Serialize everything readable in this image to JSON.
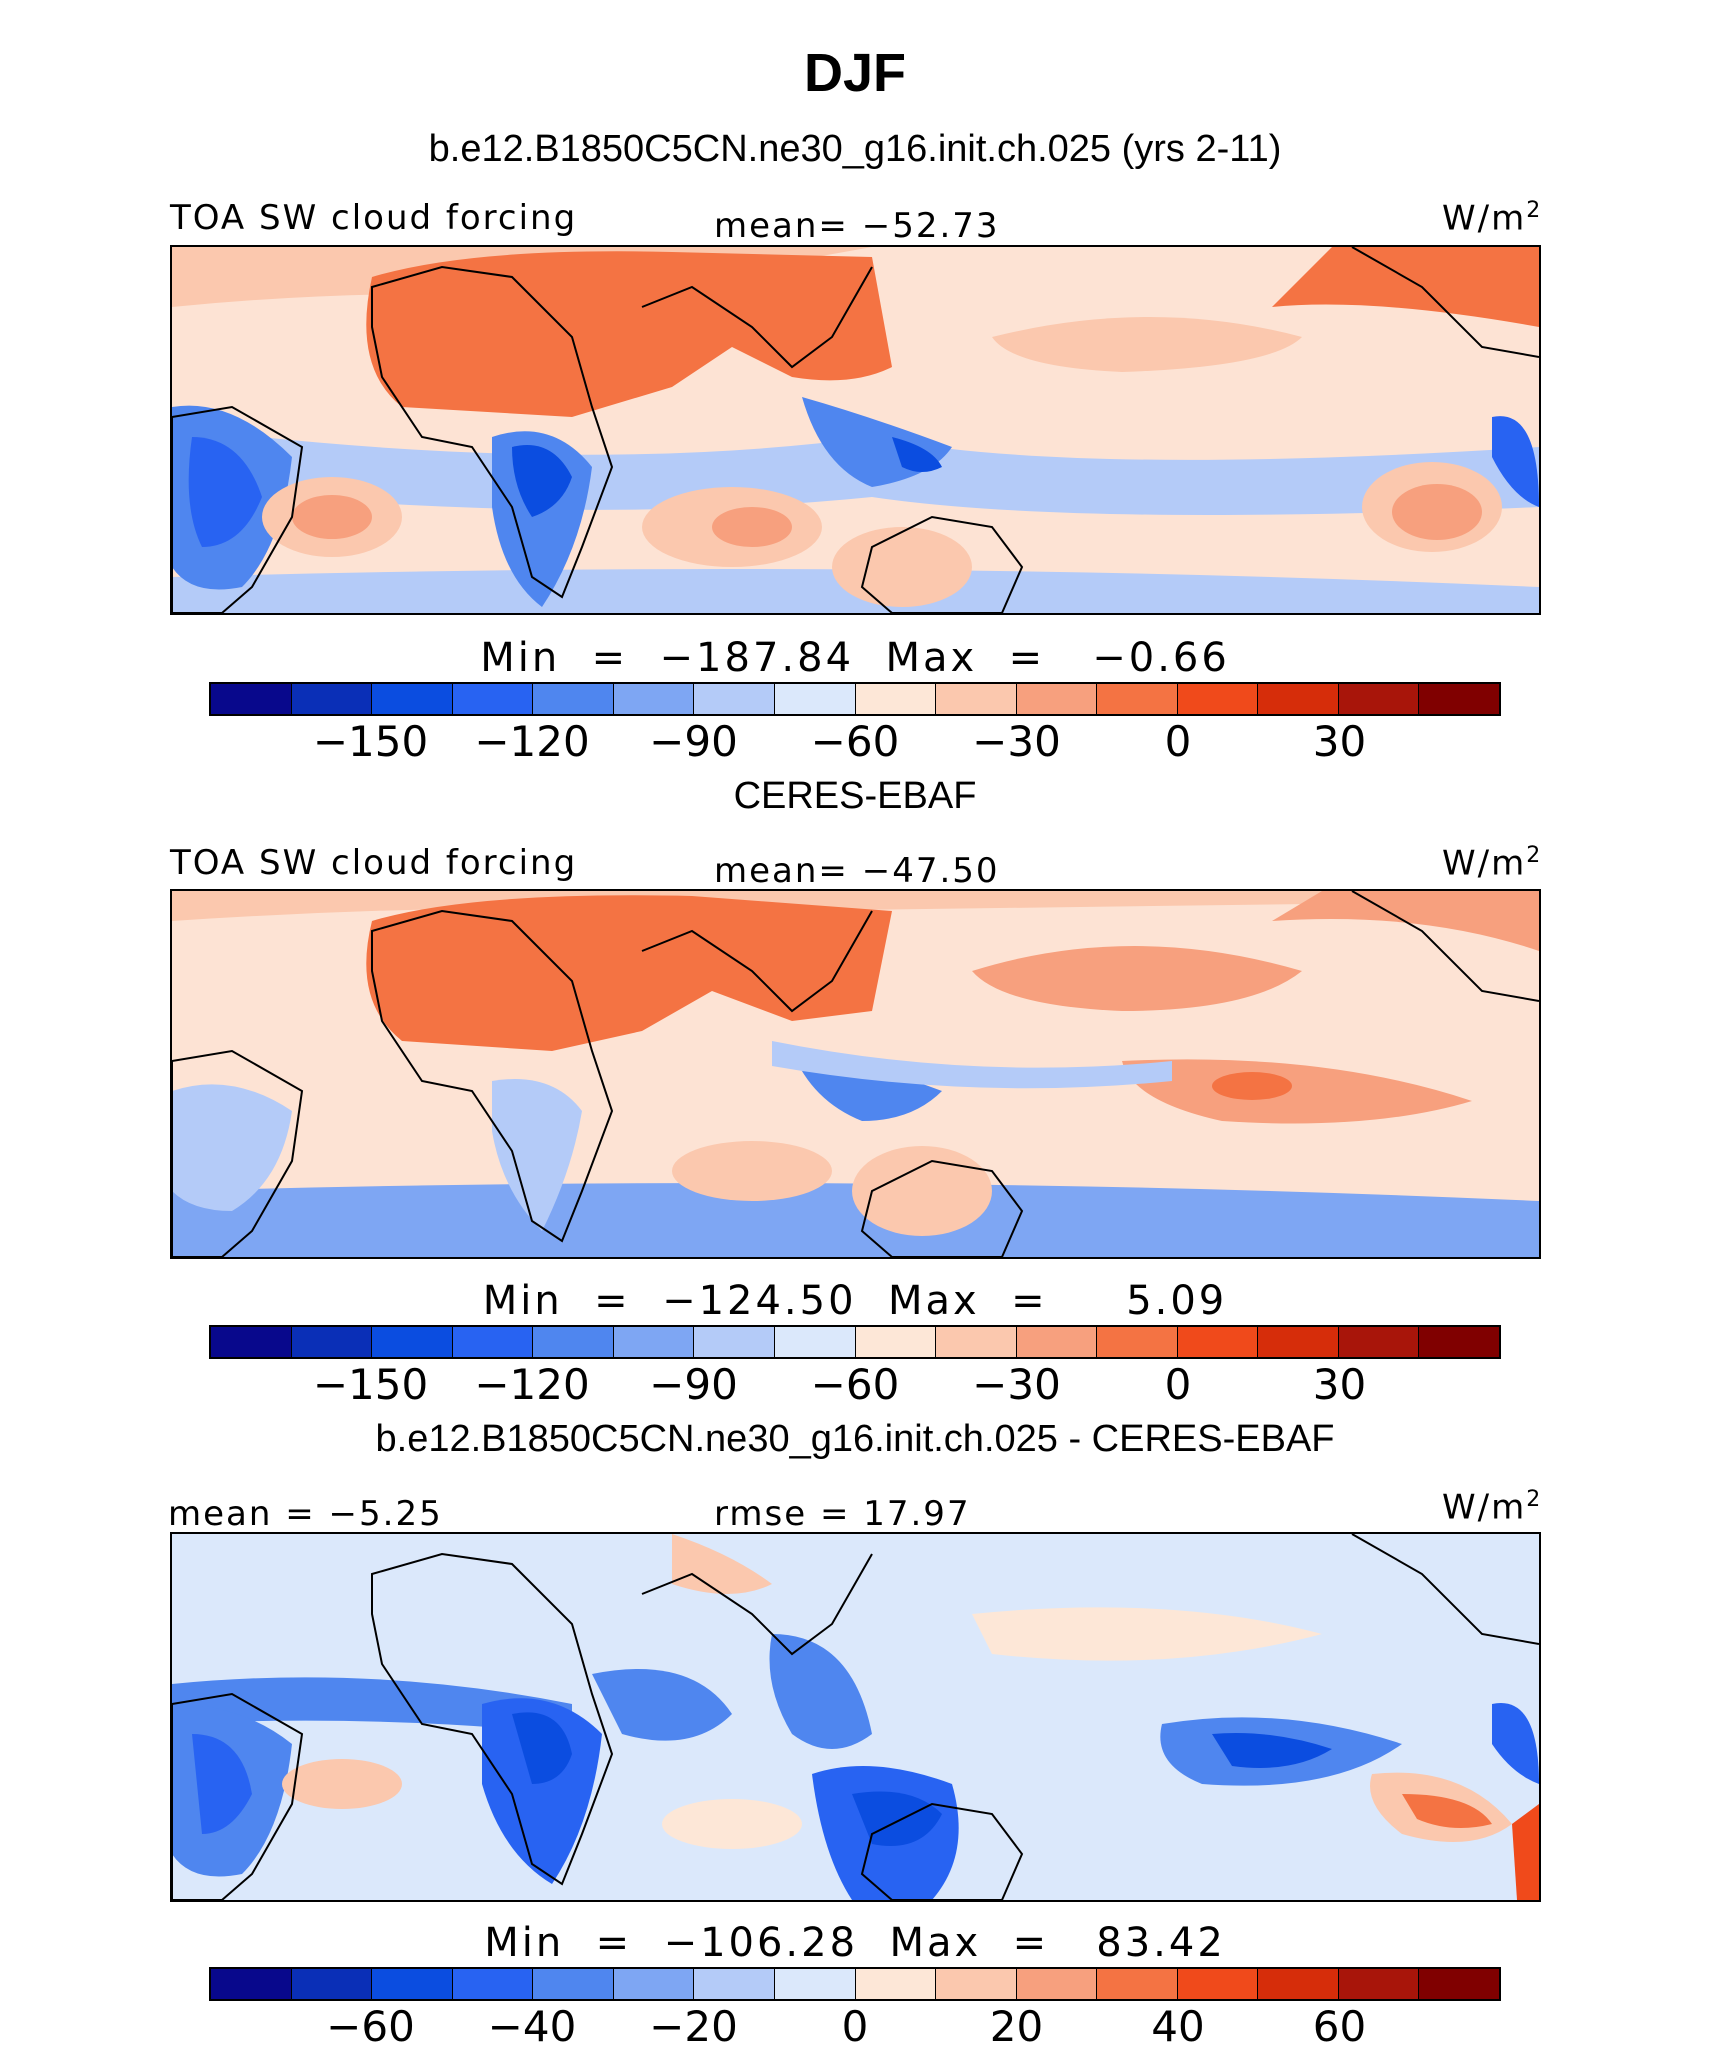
{
  "title": "DJF",
  "colors": [
    "#08088c",
    "#0a2fb7",
    "#0b4de0",
    "#2863f2",
    "#4f86ef",
    "#7ea6f3",
    "#b4cbf8",
    "#dbe8fb",
    "#fde7d7",
    "#fbc8ae",
    "#f7a07e",
    "#f47343",
    "#f04a1b",
    "#d62d0a",
    "#a8150a",
    "#800000"
  ],
  "panels": [
    {
      "title": "b.e12.B1850C5CN.ne30_g16.init.ch.025 (yrs 2-11)",
      "left_label": "TOA SW cloud forcing",
      "center_label": "mean= −52.73",
      "units": "W/m",
      "units_sup": "2",
      "minmax": "Min  =  −187.84  Max  =   −0.66",
      "ticks": [
        "−150",
        "−120",
        "−90",
        "−60",
        "−30",
        "0",
        "30"
      ],
      "tick_positions": [
        2,
        4,
        6,
        8,
        10,
        12,
        14
      ]
    },
    {
      "title": "CERES-EBAF",
      "left_label": "TOA SW cloud forcing",
      "center_label": "mean= −47.50",
      "units": "W/m",
      "units_sup": "2",
      "minmax": "Min  =  −124.50  Max  =     5.09",
      "ticks": [
        "−150",
        "−120",
        "−90",
        "−60",
        "−30",
        "0",
        "30"
      ],
      "tick_positions": [
        2,
        4,
        6,
        8,
        10,
        12,
        14
      ]
    },
    {
      "title": "b.e12.B1850C5CN.ne30_g16.init.ch.025 - CERES-EBAF",
      "left_label": "mean =   −5.25",
      "center_label": "rmse =   17.97",
      "units": "W/m",
      "units_sup": "2",
      "minmax": "Min  =  −106.28  Max  =   83.42",
      "ticks": [
        "−60",
        "−40",
        "−20",
        "0",
        "20",
        "40",
        "60"
      ],
      "tick_positions": [
        2,
        4,
        6,
        8,
        10,
        12,
        14
      ]
    }
  ]
}
